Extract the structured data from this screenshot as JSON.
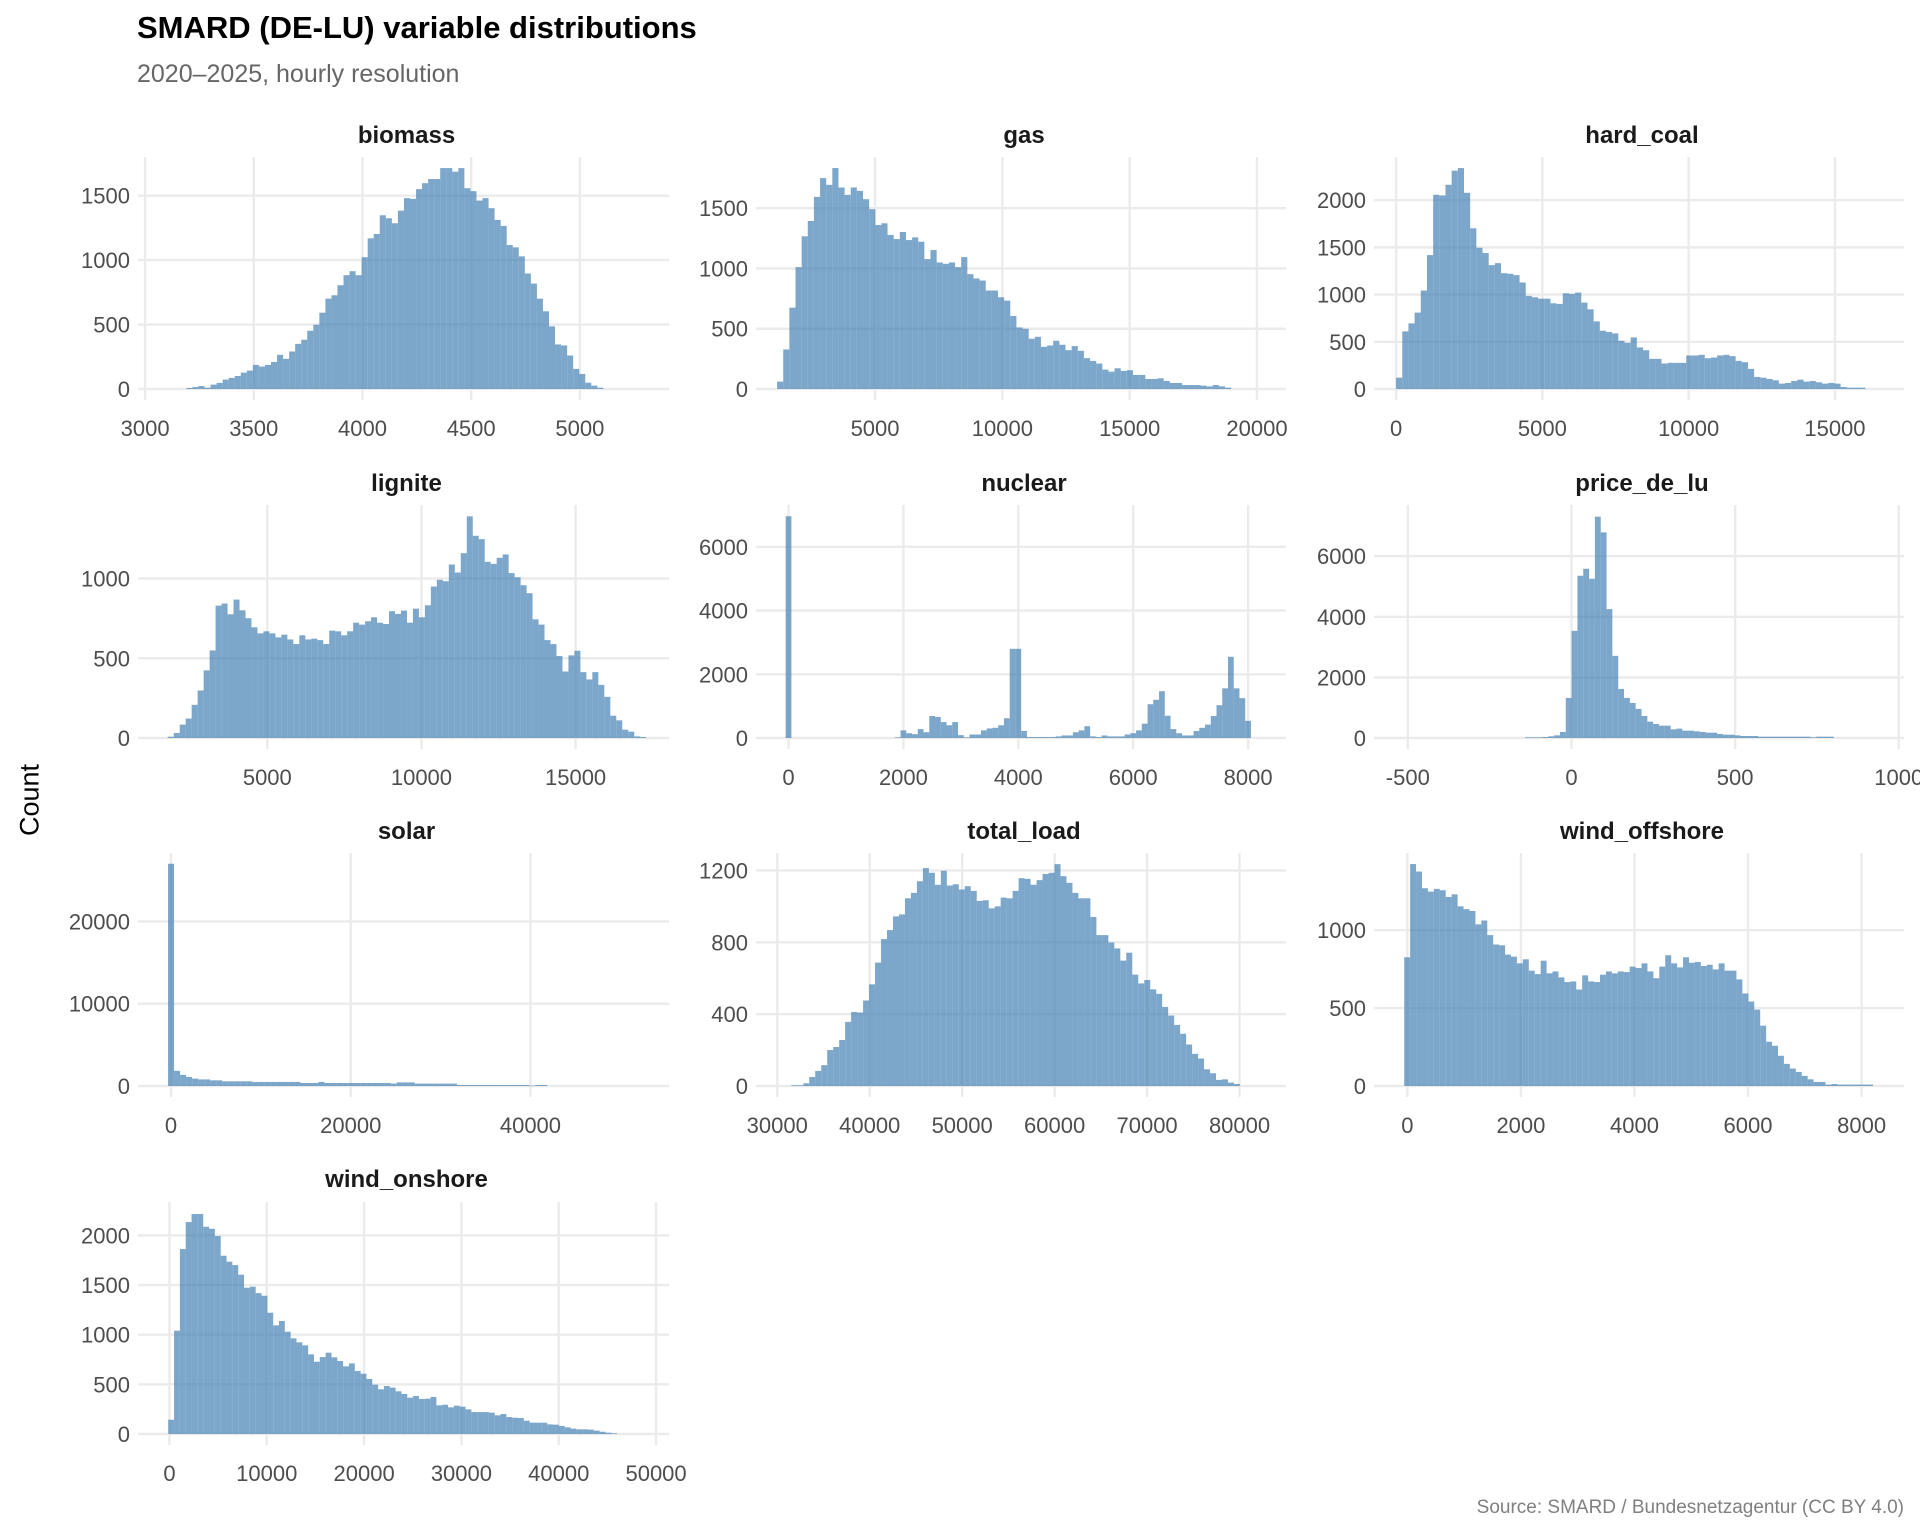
{
  "title": "SMARD (DE-LU) variable distributions",
  "subtitle": "2020–2025, hourly resolution",
  "caption": "Source: SMARD / Bundesnetzagentur (CC BY 4.0)",
  "colors": {
    "bar": "#4682b4",
    "grid": "#ebebeb",
    "text": "#4d4d4d"
  },
  "chart_data": {
    "type": "bar",
    "subtype": "faceted-histogram",
    "title": "SMARD (DE-LU) variable distributions",
    "subtitle": "2020–2025, hourly resolution",
    "xlabel": "",
    "ylabel": "Count",
    "grid": true,
    "legend": "none",
    "facets": [
      {
        "name": "biomass",
        "xlim": [
          2995,
          5410
        ],
        "ylim": [
          0,
          1800
        ],
        "xticks": [
          3000,
          3500,
          4000,
          4500,
          5000
        ],
        "yticks": [
          0,
          500,
          1000,
          1500
        ],
        "bin_start": 3190,
        "bin_width": 27.8,
        "counts": [
          8,
          15,
          23,
          10,
          34,
          47,
          73,
          86,
          101,
          127,
          143,
          187,
          174,
          187,
          210,
          265,
          234,
          291,
          350,
          382,
          452,
          499,
          592,
          701,
          727,
          805,
          883,
          914,
          883,
          1023,
          1169,
          1203,
          1348,
          1325,
          1286,
          1384,
          1481,
          1475,
          1551,
          1597,
          1629,
          1629,
          1714,
          1714,
          1686,
          1714,
          1558,
          1535,
          1462,
          1481,
          1403,
          1312,
          1265,
          1117,
          1099,
          1029,
          896,
          818,
          701,
          603,
          486,
          346,
          338,
          260,
          156,
          117,
          49,
          26,
          10
        ]
      },
      {
        "name": "gas",
        "xlim": [
          560,
          21140
        ],
        "ylim": [
          0,
          1925
        ],
        "xticks": [
          5000,
          10000,
          15000,
          20000
        ],
        "yticks": [
          0,
          500,
          1000,
          1500
        ],
        "bin_start": 1153,
        "bin_width": 241,
        "counts": [
          61,
          328,
          675,
          1011,
          1267,
          1394,
          1594,
          1750,
          1694,
          1833,
          1672,
          1611,
          1672,
          1644,
          1575,
          1492,
          1361,
          1375,
          1278,
          1244,
          1303,
          1236,
          1258,
          1222,
          1078,
          1153,
          1050,
          1039,
          1050,
          1011,
          1094,
          953,
          917,
          900,
          817,
          817,
          761,
          733,
          606,
          511,
          500,
          417,
          433,
          350,
          361,
          400,
          367,
          322,
          356,
          317,
          256,
          233,
          211,
          161,
          144,
          172,
          150,
          156,
          117,
          117,
          83,
          83,
          89,
          67,
          50,
          50,
          33,
          33,
          33,
          28,
          22,
          33,
          22,
          11
        ]
      },
      {
        "name": "hard_coal",
        "xlim": [
          -550,
          17360
        ],
        "ylim": [
          0,
          2457
        ],
        "xticks": [
          0,
          5000,
          10000,
          15000
        ],
        "yticks": [
          0,
          500,
          1000,
          1500,
          2000
        ],
        "bin_start": 0,
        "bin_width": 211,
        "counts": [
          120,
          610,
          695,
          809,
          1043,
          1418,
          2057,
          2050,
          2163,
          2312,
          2340,
          2078,
          1702,
          1496,
          1440,
          1312,
          1333,
          1227,
          1220,
          1206,
          1128,
          986,
          972,
          957,
          957,
          908,
          901,
          1014,
          1007,
          1021,
          915,
          844,
          716,
          617,
          603,
          589,
          511,
          489,
          546,
          440,
          411,
          319,
          319,
          270,
          277,
          277,
          277,
          355,
          355,
          362,
          326,
          333,
          355,
          362,
          348,
          298,
          284,
          213,
          128,
          120,
          106,
          92,
          57,
          64,
          85,
          99,
          78,
          85,
          71,
          57,
          64,
          57,
          21,
          14,
          14,
          14
        ]
      },
      {
        "name": "lignite",
        "xlim": [
          1000,
          18030
        ],
        "ylim": [
          0,
          1461
        ],
        "xticks": [
          5000,
          10000,
          15000
        ],
        "yticks": [
          0,
          500,
          1000
        ],
        "bin_start": 1770,
        "bin_width": 194,
        "counts": [
          8,
          31,
          84,
          122,
          208,
          298,
          424,
          549,
          830,
          843,
          776,
          868,
          801,
          751,
          694,
          656,
          669,
          656,
          631,
          648,
          618,
          589,
          644,
          618,
          623,
          614,
          589,
          673,
          669,
          644,
          669,
          723,
          711,
          732,
          757,
          723,
          715,
          795,
          778,
          799,
          723,
          811,
          757,
          832,
          950,
          992,
          983,
          1088,
          1038,
          1159,
          1390,
          1268,
          1247,
          1105,
          1092,
          1130,
          1151,
          1034,
          1008,
          958,
          908,
          744,
          711,
          614,
          589,
          514,
          417,
          518,
          547,
          413,
          367,
          413,
          333,
          258,
          140,
          111,
          52,
          40,
          10,
          6
        ]
      },
      {
        "name": "nuclear",
        "xlim": [
          -462,
          8660
        ],
        "ylim": [
          0,
          7314
        ],
        "xticks": [
          0,
          2000,
          4000,
          6000,
          8000
        ],
        "yticks": [
          0,
          2000,
          4000,
          6000
        ],
        "bin_start": -50,
        "bin_width": 100,
        "counts": [
          6960,
          0,
          0,
          0,
          0,
          0,
          0,
          0,
          0,
          0,
          0,
          0,
          0,
          0,
          0,
          0,
          0,
          0,
          0,
          20,
          240,
          150,
          120,
          280,
          180,
          690,
          660,
          500,
          400,
          500,
          90,
          20,
          110,
          110,
          240,
          300,
          320,
          400,
          620,
          2800,
          2800,
          220,
          30,
          30,
          30,
          30,
          30,
          50,
          80,
          80,
          180,
          240,
          370,
          50,
          30,
          80,
          50,
          50,
          50,
          110,
          150,
          240,
          450,
          1060,
          1200,
          1470,
          700,
          280,
          150,
          80,
          80,
          220,
          320,
          420,
          690,
          1030,
          1560,
          2550,
          1560,
          1250,
          540
        ]
      },
      {
        "name": "price_de_lu",
        "xlim": [
          -585,
          1016
        ],
        "ylim": [
          0,
          7691
        ],
        "xticks": [
          -500,
          0,
          500,
          1000
        ],
        "yticks": [
          0,
          2000,
          4000,
          6000
        ],
        "bin_start": -142,
        "bin_width": 17.8,
        "counts": [
          22,
          22,
          22,
          33,
          55,
          88,
          198,
          1322,
          3537,
          5355,
          5587,
          5256,
          7306,
          6788,
          4254,
          2711,
          1620,
          1322,
          1157,
          959,
          727,
          540,
          463,
          408,
          408,
          287,
          309,
          242,
          242,
          220,
          198,
          176,
          176,
          132,
          110,
          110,
          88,
          66,
          66,
          66,
          44,
          44,
          44,
          44,
          44,
          44,
          44,
          44,
          44,
          22,
          44,
          44,
          44
        ]
      },
      {
        "name": "solar",
        "xlim": [
          -3010,
          55420
        ],
        "ylim": [
          0,
          28310
        ],
        "xticks": [
          0,
          20000,
          40000
        ],
        "yticks": [
          0,
          10000,
          20000
        ],
        "bin_start": -335,
        "bin_width": 670,
        "counts": [
          27000,
          1840,
          1350,
          1100,
          900,
          800,
          800,
          690,
          690,
          570,
          570,
          570,
          570,
          570,
          490,
          490,
          490,
          490,
          490,
          490,
          490,
          490,
          370,
          370,
          370,
          490,
          370,
          370,
          370,
          370,
          370,
          370,
          370,
          370,
          370,
          370,
          370,
          290,
          440,
          440,
          440,
          290,
          290,
          290,
          290,
          290,
          290,
          290,
          120,
          120,
          120,
          120,
          120,
          120,
          120,
          120,
          120,
          120,
          120,
          120,
          40,
          120,
          120
        ]
      },
      {
        "name": "total_load",
        "xlim": [
          28350,
          85025
        ],
        "ylim": [
          0,
          1297
        ],
        "xticks": [
          30000,
          40000,
          50000,
          60000,
          70000,
          80000
        ],
        "yticks": [
          0,
          400,
          800,
          1200
        ],
        "bin_start": 31519,
        "bin_width": 647,
        "counts": [
          4,
          4,
          15,
          50,
          84,
          116,
          200,
          217,
          256,
          357,
          412,
          409,
          476,
          566,
          687,
          818,
          868,
          944,
          955,
          1045,
          1075,
          1140,
          1213,
          1187,
          1120,
          1198,
          1116,
          1123,
          1094,
          1112,
          1086,
          1030,
          1034,
          989,
          1000,
          1049,
          1045,
          1086,
          1157,
          1153,
          1120,
          1146,
          1180,
          1187,
          1235,
          1168,
          1131,
          1075,
          1045,
          1045,
          941,
          840,
          840,
          799,
          766,
          698,
          742,
          620,
          571,
          590,
          538,
          513,
          440,
          392,
          340,
          291,
          231,
          179,
          153,
          93,
          71,
          34,
          37,
          19,
          11
        ]
      },
      {
        "name": "wind_offshore",
        "xlim": [
          -482,
          8747
        ],
        "ylim": [
          0,
          1495
        ],
        "xticks": [
          0,
          2000,
          4000,
          6000,
          8000
        ],
        "yticks": [
          0,
          500,
          1000
        ],
        "bin_start": -56,
        "bin_width": 104.5,
        "counts": [
          826,
          1424,
          1376,
          1269,
          1247,
          1265,
          1256,
          1213,
          1230,
          1153,
          1135,
          1123,
          1037,
          1062,
          968,
          908,
          903,
          843,
          830,
          787,
          813,
          740,
          718,
          804,
          723,
          735,
          697,
          667,
          671,
          619,
          710,
          671,
          667,
          714,
          735,
          723,
          735,
          731,
          766,
          757,
          787,
          735,
          692,
          766,
          839,
          787,
          761,
          826,
          791,
          796,
          770,
          778,
          748,
          787,
          740,
          740,
          684,
          594,
          542,
          490,
          387,
          284,
          258,
          194,
          142,
          112,
          90,
          65,
          43,
          26,
          26,
          9,
          13,
          9,
          9,
          9,
          9,
          9,
          9
        ]
      },
      {
        "name": "wind_onshore",
        "xlim": [
          -2614,
          51328
        ],
        "ylim": [
          0,
          2336
        ],
        "xticks": [
          0,
          10000,
          20000,
          30000,
          40000,
          50000
        ],
        "yticks": [
          0,
          500,
          1000,
          1500,
          2000
        ],
        "bin_start": -124,
        "bin_width": 599,
        "counts": [
          144,
          1040,
          1862,
          2134,
          2215,
          2215,
          2087,
          2067,
          1993,
          1795,
          1735,
          1701,
          1604,
          1473,
          1483,
          1419,
          1392,
          1221,
          1094,
          1138,
          1030,
          963,
          923,
          893,
          802,
          728,
          775,
          819,
          772,
          735,
          681,
          711,
          634,
          607,
          554,
          497,
          450,
          483,
          467,
          430,
          403,
          366,
          383,
          352,
          356,
          373,
          289,
          295,
          268,
          285,
          275,
          248,
          221,
          221,
          221,
          215,
          188,
          201,
          171,
          164,
          161,
          134,
          114,
          114,
          114,
          97,
          94,
          81,
          67,
          54,
          47,
          47,
          44,
          34,
          23,
          13,
          7
        ]
      }
    ]
  }
}
